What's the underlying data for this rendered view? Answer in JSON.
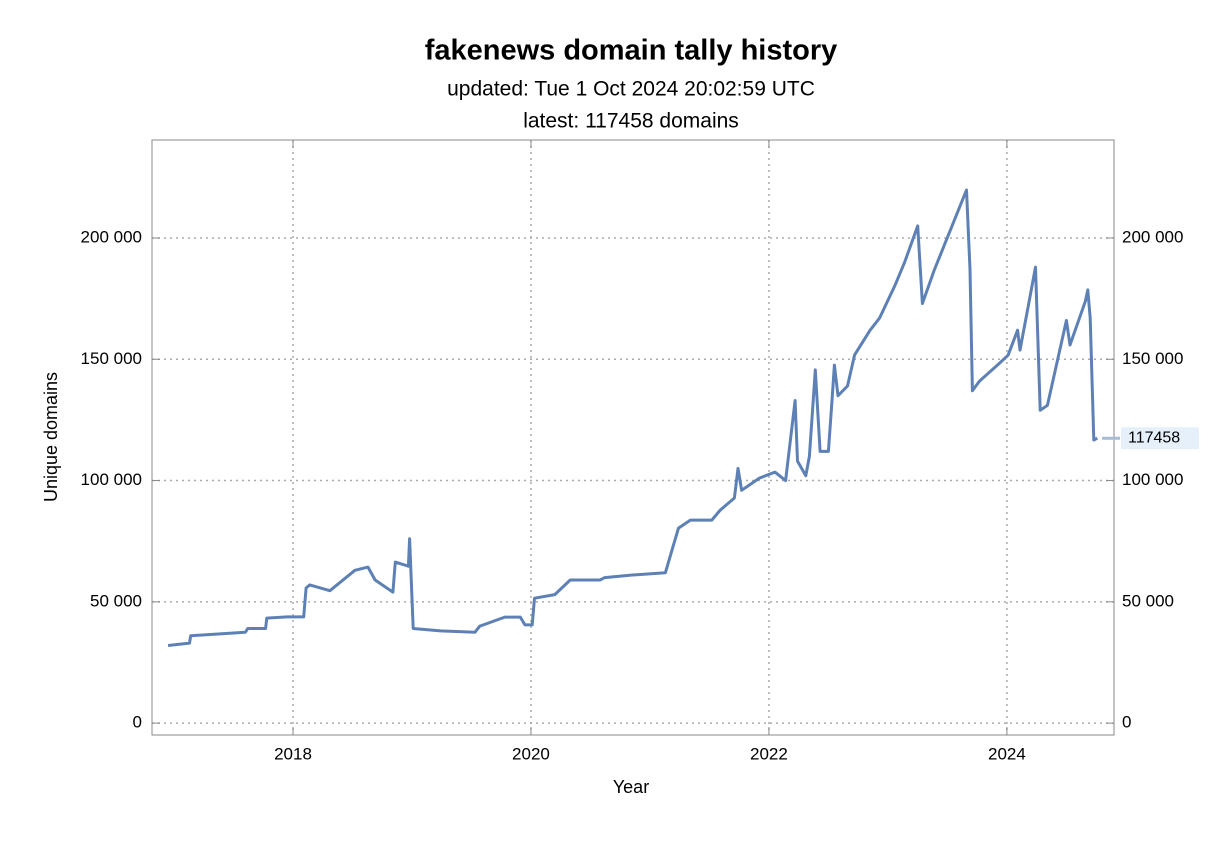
{
  "chart_data": {
    "type": "line",
    "title": "fakenews domain tally history",
    "subtitle": "updated: Tue 1 Oct 2024 20:02:59 UTC",
    "annotation": "latest: 117458 domains",
    "x_label": "Year",
    "y_label": "Unique domains",
    "xlim": [
      2016.815,
      2024.9
    ],
    "xticks": [
      2018,
      2020,
      2022,
      2024
    ],
    "ylim": [
      -4900,
      240400
    ],
    "yticks": [
      0,
      {
        "value": 50000,
        "label": "50 000"
      },
      {
        "value": 100000,
        "label": "100 000"
      },
      {
        "value": 150000,
        "label": "150 000"
      },
      {
        "value": 200000,
        "label": "200 000"
      }
    ],
    "grid": true,
    "x": [
      2016.95,
      2017.13,
      2017.14,
      2017.6,
      2017.62,
      2017.77,
      2017.78,
      2017.95,
      2018.09,
      2018.11,
      2018.14,
      2018.31,
      2018.52,
      2018.63,
      2018.69,
      2018.84,
      2018.86,
      2018.97,
      2018.98,
      2019.01,
      2019.24,
      2019.53,
      2019.57,
      2019.78,
      2019.91,
      2019.95,
      2020.01,
      2020.03,
      2020.2,
      2020.33,
      2020.58,
      2020.62,
      2020.83,
      2021.13,
      2021.18,
      2021.24,
      2021.34,
      2021.52,
      2021.59,
      2021.71,
      2021.74,
      2021.77,
      2021.92,
      2022.05,
      2022.14,
      2022.22,
      2022.24,
      2022.31,
      2022.34,
      2022.39,
      2022.43,
      2022.5,
      2022.53,
      2022.55,
      2022.58,
      2022.66,
      2022.72,
      2022.85,
      2022.93,
      2023.06,
      2023.14,
      2023.25,
      2023.29,
      2023.39,
      2023.66,
      2023.69,
      2023.71,
      2023.77,
      2023.92,
      2024.01,
      2024.09,
      2024.11,
      2024.18,
      2024.24,
      2024.28,
      2024.34,
      2024.5,
      2024.53,
      2024.66,
      2024.68,
      2024.7,
      2024.73,
      2024.76
    ],
    "series": [
      {
        "name": "Unique domains",
        "color": "#5e81b5",
        "values": [
          32000,
          33000,
          36000,
          37500,
          39000,
          39000,
          43300,
          43800,
          43800,
          55700,
          57000,
          54600,
          63000,
          64300,
          59000,
          54000,
          66400,
          64700,
          76000,
          39000,
          38000,
          37500,
          40000,
          43700,
          43700,
          40500,
          40500,
          51500,
          53000,
          59000,
          59000,
          60000,
          61000,
          62000,
          70500,
          80400,
          83700,
          83700,
          87800,
          92800,
          105000,
          96000,
          101000,
          103500,
          100000,
          133000,
          108000,
          102000,
          110000,
          145600,
          112000,
          112000,
          133000,
          147600,
          135000,
          139000,
          151800,
          162000,
          167000,
          180600,
          190000,
          205000,
          173000,
          186800,
          219800,
          187000,
          137000,
          141000,
          147600,
          151700,
          162000,
          153800,
          172000,
          188000,
          129000,
          131000,
          166000,
          155900,
          174000,
          178600,
          167000,
          116700,
          117458
        ]
      }
    ]
  }
}
